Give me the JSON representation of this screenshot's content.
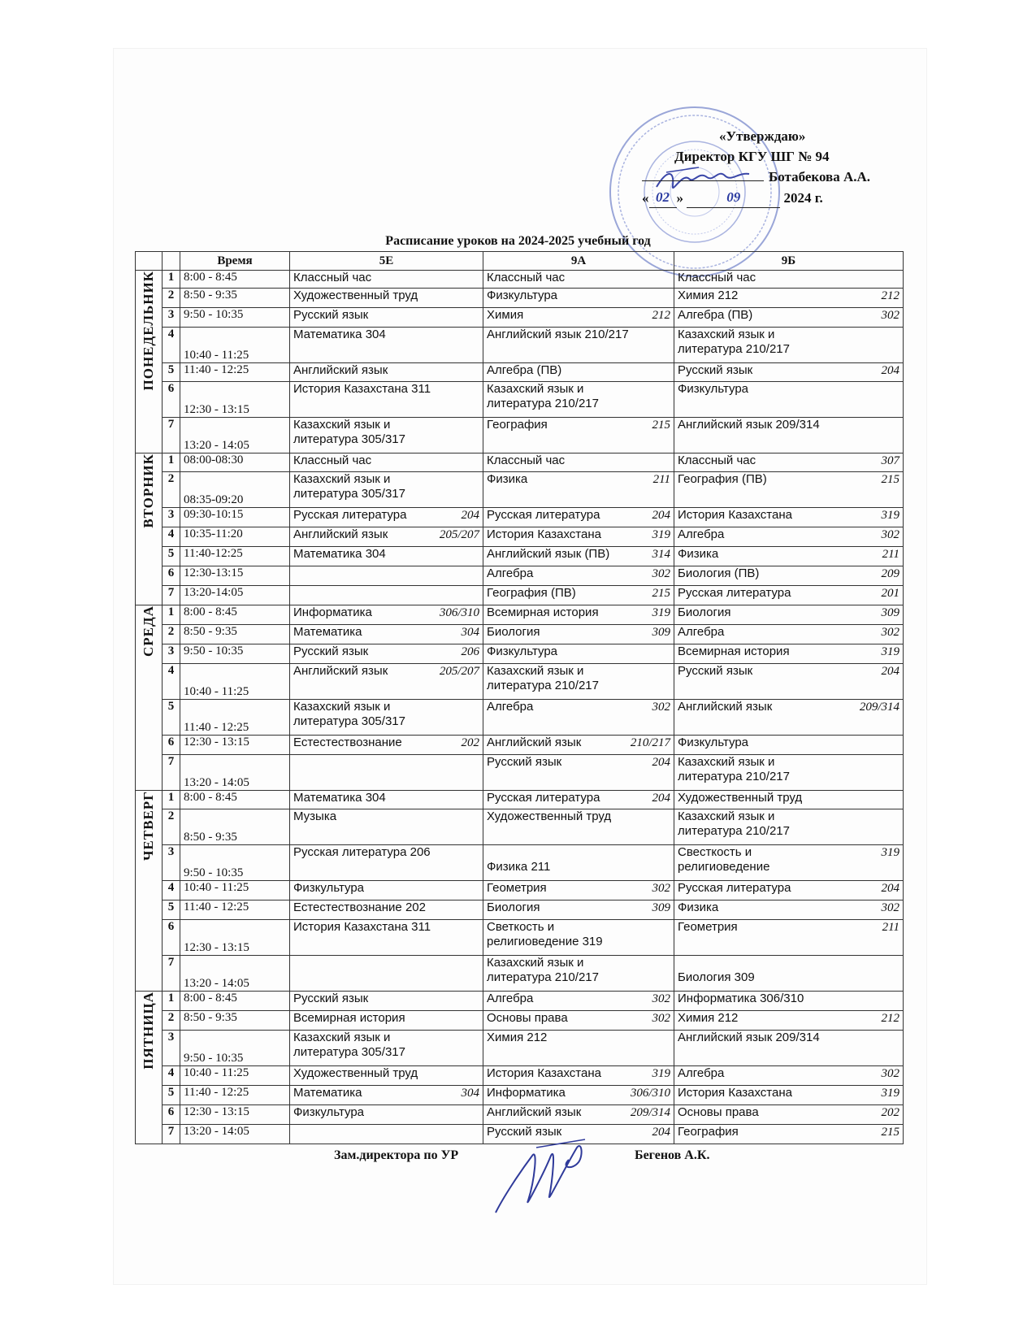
{
  "approval": {
    "line1": "«Утверждаю»",
    "line2": "Директор КГУ ШГ № 94",
    "line3_name": "Ботабекова А.А.",
    "day": "02",
    "month": "09",
    "year": "2024 г."
  },
  "title": "Расписание уроков на 2024-2025 учебный год",
  "headers": {
    "time": "Время",
    "c1": "5Е",
    "c2": "9А",
    "c3": "9Б"
  },
  "days": [
    {
      "name": "ПОНЕДЕЛЬНИК",
      "rows": [
        {
          "n": "1",
          "time": "8:00 - 8:45",
          "h": 22,
          "c": [
            {
              "t": "Классный час",
              "r": ""
            },
            {
              "t": "Классный час",
              "r": ""
            },
            {
              "t": "Классный час",
              "r": ""
            }
          ]
        },
        {
          "n": "2",
          "time": "8:50 - 9:35",
          "h": 24,
          "c": [
            {
              "t": "Художественный труд",
              "r": ""
            },
            {
              "t": "Физкультура",
              "r": ""
            },
            {
              "t": "Химия    212",
              "r": "212"
            }
          ]
        },
        {
          "n": "3",
          "time": "9:50 - 10:35",
          "h": 24,
          "c": [
            {
              "t": "Русский язык",
              "r": ""
            },
            {
              "t": "Химия",
              "r": "212"
            },
            {
              "t": "Алгебра (ПВ)",
              "r": "302"
            }
          ]
        },
        {
          "n": "4",
          "time": "10:40 - 11:25",
          "h": 44,
          "c": [
            {
              "t": "Математика           304",
              "r": ""
            },
            {
              "t": "Английский язык    210/217",
              "r": ""
            },
            {
              "t": "Казахский язык и\nлитература       210/217",
              "r": ""
            }
          ]
        },
        {
          "n": "5",
          "time": "11:40 - 12:25",
          "h": 23,
          "c": [
            {
              "t": "Английский язык",
              "r": ""
            },
            {
              "t": "Алгебра (ПВ)",
              "r": ""
            },
            {
              "t": "Русский язык",
              "r": "204"
            }
          ]
        },
        {
          "n": "6",
          "time": "12:30 - 13:15",
          "h": 44,
          "c": [
            {
              "t": "История Казахстана  311",
              "r": ""
            },
            {
              "t": "Казахский язык и\nлитература       210/217",
              "r": ""
            },
            {
              "t": "Физкультура",
              "r": ""
            }
          ]
        },
        {
          "n": "7",
          "time": "13:20 - 14:05",
          "h": 44,
          "c": [
            {
              "t": "Казахский язык и\nлитература             305/317",
              "r": ""
            },
            {
              "t": "География",
              "r": "215"
            },
            {
              "t": "Английский язык    209/314",
              "r": ""
            }
          ]
        }
      ]
    },
    {
      "name": "ВТОРНИК",
      "rows": [
        {
          "n": "1",
          "time": "08:00-08:30",
          "h": 23,
          "c": [
            {
              "t": "Классный час",
              "r": ""
            },
            {
              "t": "Классный час",
              "r": ""
            },
            {
              "t": "Классный час",
              "r": "307"
            }
          ]
        },
        {
          "n": "2",
          "time": "08:35-09:20",
          "h": 44,
          "c": [
            {
              "t": "Казахский язык и\nлитература           305/317",
              "r": ""
            },
            {
              "t": "Физика",
              "r": "211"
            },
            {
              "t": "География (ПВ)",
              "r": "215"
            }
          ]
        },
        {
          "n": "3",
          "time": "09:30-10:15",
          "h": 24,
          "c": [
            {
              "t": "Русская литература",
              "r": "204"
            },
            {
              "t": "Русская литература",
              "r": "204"
            },
            {
              "t": "История Казахстана",
              "r": "319"
            }
          ]
        },
        {
          "n": "4",
          "time": "10:35-11:20",
          "h": 24,
          "c": [
            {
              "t": "Английский язык",
              "r": "205/207"
            },
            {
              "t": "История Казахстана",
              "r": "319"
            },
            {
              "t": "Алгебра",
              "r": "302"
            }
          ]
        },
        {
          "n": "5",
          "time": "11:40-12:25",
          "h": 24,
          "c": [
            {
              "t": "Математика         304",
              "r": ""
            },
            {
              "t": "Английский язык (ПВ)",
              "r": "314"
            },
            {
              "t": "Физика",
              "r": "211"
            }
          ]
        },
        {
          "n": "6",
          "time": "12:30-13:15",
          "h": 24,
          "c": [
            {
              "t": "",
              "r": ""
            },
            {
              "t": "Алгебра",
              "r": "302"
            },
            {
              "t": "Биология (ПВ)",
              "r": "209"
            }
          ]
        },
        {
          "n": "7",
          "time": "13:20-14:05",
          "h": 24,
          "c": [
            {
              "t": "",
              "r": ""
            },
            {
              "t": "География (ПВ)",
              "r": "215"
            },
            {
              "t": "Русская литература",
              "r": "201"
            }
          ]
        }
      ]
    },
    {
      "name": "СРЕДА",
      "rows": [
        {
          "n": "1",
          "time": "8:00 - 8:45",
          "h": 24,
          "c": [
            {
              "t": "Информатика",
              "r": "306/310"
            },
            {
              "t": "Всемирная история",
              "r": "319"
            },
            {
              "t": "Биология",
              "r": "309"
            }
          ]
        },
        {
          "n": "2",
          "time": "8:50 - 9:35",
          "h": 24,
          "c": [
            {
              "t": "Математика",
              "r": "304"
            },
            {
              "t": "Биология",
              "r": "309"
            },
            {
              "t": "Алгебра",
              "r": "302"
            }
          ]
        },
        {
          "n": "3",
          "time": "9:50 - 10:35",
          "h": 24,
          "c": [
            {
              "t": "Русский язык",
              "r": "206"
            },
            {
              "t": "Физкультура",
              "r": ""
            },
            {
              "t": "Всемирная история",
              "r": "319"
            }
          ]
        },
        {
          "n": "4",
          "time": "10:40 - 11:25",
          "h": 44,
          "c": [
            {
              "t": "Английский язык",
              "r": "205/207"
            },
            {
              "t": "Казахский язык и\nлитература     210/217",
              "r": ""
            },
            {
              "t": "Русский язык",
              "r": "204"
            }
          ]
        },
        {
          "n": "5",
          "time": "11:40 - 12:25",
          "h": 44,
          "c": [
            {
              "t": "Казахский язык и\nлитература             305/317",
              "r": ""
            },
            {
              "t": "Алгебра",
              "r": "302"
            },
            {
              "t": "Английский язык",
              "r": "209/314"
            }
          ]
        },
        {
          "n": "6",
          "time": "12:30 - 13:15",
          "h": 24,
          "c": [
            {
              "t": "Естестествознание",
              "r": "202"
            },
            {
              "t": "Английский язык",
              "r": "210/217"
            },
            {
              "t": "Физкультура",
              "r": ""
            }
          ]
        },
        {
          "n": "7",
          "time": "13:20 - 14:05",
          "h": 44,
          "c": [
            {
              "t": "",
              "r": ""
            },
            {
              "t": "Русский язык",
              "r": "204"
            },
            {
              "t": "Казахский язык и\nлитература          210/217",
              "r": ""
            }
          ]
        }
      ]
    },
    {
      "name": "ЧЕТВЕРГ",
      "rows": [
        {
          "n": "1",
          "time": "8:00 - 8:45",
          "h": 23,
          "c": [
            {
              "t": "Математика           304",
              "r": ""
            },
            {
              "t": "Русская литература",
              "r": "204"
            },
            {
              "t": "Художественный труд",
              "r": ""
            }
          ]
        },
        {
          "n": "2",
          "time": "8:50 - 9:35",
          "h": 44,
          "c": [
            {
              "t": "Музыка",
              "r": ""
            },
            {
              "t": "Художественный труд",
              "r": ""
            },
            {
              "t": "Казахский язык и\nлитература   210/217",
              "r": ""
            }
          ]
        },
        {
          "n": "3",
          "time": "9:50 - 10:35",
          "h": 44,
          "c": [
            {
              "t": "Русская литература 206",
              "r": ""
            },
            {
              "t": "\nФизика              211",
              "r": ""
            },
            {
              "t": "Свесткость и\nрелигиоведение",
              "r": "319"
            }
          ]
        },
        {
          "n": "4",
          "time": "10:40 - 11:25",
          "h": 24,
          "c": [
            {
              "t": "Физкультура",
              "r": ""
            },
            {
              "t": "Геометрия",
              "r": "302"
            },
            {
              "t": "Русская литература",
              "r": "204"
            }
          ]
        },
        {
          "n": "5",
          "time": "11:40 - 12:25",
          "h": 24,
          "c": [
            {
              "t": "Естестествознание 202",
              "r": ""
            },
            {
              "t": "Биология",
              "r": "309"
            },
            {
              "t": "Физика",
              "r": "302"
            }
          ]
        },
        {
          "n": "6",
          "time": "12:30 - 13:15",
          "h": 44,
          "c": [
            {
              "t": "История Казахстана 311",
              "r": ""
            },
            {
              "t": "Светкость и\nрелигиоведение   319",
              "r": ""
            },
            {
              "t": "Геометрия",
              "r": "211"
            }
          ]
        },
        {
          "n": "7",
          "time": "13:20 - 14:05",
          "h": 44,
          "c": [
            {
              "t": "",
              "r": ""
            },
            {
              "t": "Казахский язык и\nлитература       210/217",
              "r": ""
            },
            {
              "t": "\nБиология              309",
              "r": ""
            }
          ]
        }
      ]
    },
    {
      "name": "ПЯТНИЦА",
      "rows": [
        {
          "n": "1",
          "time": "8:00 - 8:45",
          "h": 24,
          "c": [
            {
              "t": "Русский язык",
              "r": ""
            },
            {
              "t": "Алгебра",
              "r": "302"
            },
            {
              "t": "Информатика      306/310",
              "r": ""
            }
          ]
        },
        {
          "n": "2",
          "time": "8:50 - 9:35",
          "h": 24,
          "c": [
            {
              "t": "Всемирная история",
              "r": ""
            },
            {
              "t": "Основы права",
              "r": "302"
            },
            {
              "t": "Химия    212",
              "r": "212"
            }
          ]
        },
        {
          "n": "3",
          "time": "9:50 - 10:35",
          "h": 44,
          "c": [
            {
              "t": "Казахский язык и\nлитература           305/317",
              "r": ""
            },
            {
              "t": "Химия              212",
              "r": ""
            },
            {
              "t": "Английский язык    209/314",
              "r": ""
            }
          ]
        },
        {
          "n": "4",
          "time": "10:40 - 11:25",
          "h": 24,
          "c": [
            {
              "t": "Художественный труд",
              "r": ""
            },
            {
              "t": "История Казахстана",
              "r": "319"
            },
            {
              "t": "Алгебра",
              "r": "302"
            }
          ]
        },
        {
          "n": "5",
          "time": "11:40 - 12:25",
          "h": 24,
          "c": [
            {
              "t": "Математика",
              "r": "304"
            },
            {
              "t": "Информатика",
              "r": "306/310"
            },
            {
              "t": "История Казахстана",
              "r": "319"
            }
          ]
        },
        {
          "n": "6",
          "time": "12:30 - 13:15",
          "h": 24,
          "c": [
            {
              "t": "Физкультура",
              "r": ""
            },
            {
              "t": "Английский язык",
              "r": "209/314"
            },
            {
              "t": "Основы права",
              "r": "202"
            }
          ]
        },
        {
          "n": "7",
          "time": "13:20 - 14:05",
          "h": 24,
          "c": [
            {
              "t": "",
              "r": ""
            },
            {
              "t": "Русский язык",
              "r": "204"
            },
            {
              "t": "География",
              "r": "215"
            }
          ]
        }
      ]
    }
  ],
  "footer": {
    "position": "Зам.директора по УР",
    "name": "Бегенов А.К."
  }
}
